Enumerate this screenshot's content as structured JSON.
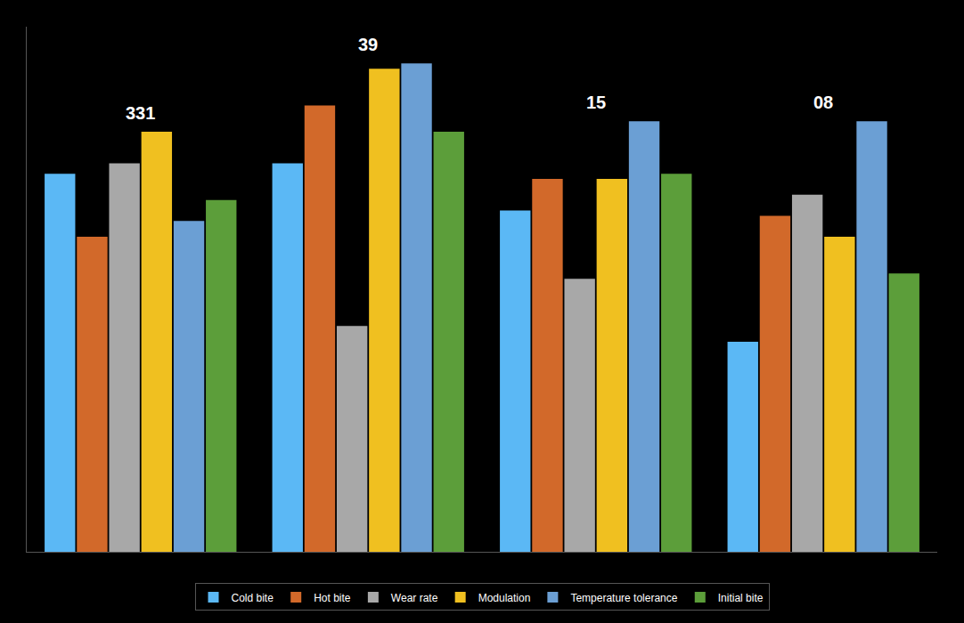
{
  "chart_data": {
    "type": "bar",
    "categories": [
      "331",
      "39",
      "15",
      "08"
    ],
    "series": [
      {
        "name": "Cold bite",
        "color": "#5BB8F5",
        "values": [
          72,
          74,
          65,
          40
        ]
      },
      {
        "name": "Hot bite",
        "color": "#D2692A",
        "values": [
          60,
          85,
          71,
          64
        ]
      },
      {
        "name": "Wear rate",
        "color": "#A8A8A8",
        "values": [
          74,
          43,
          52,
          68
        ]
      },
      {
        "name": "Modulation",
        "color": "#F0C020",
        "values": [
          80,
          92,
          71,
          60
        ]
      },
      {
        "name": "Temperature tolerance",
        "color": "#6B9FD4",
        "values": [
          63,
          93,
          82,
          82
        ]
      },
      {
        "name": "Initial bite",
        "color": "#5C9E3A",
        "values": [
          67,
          80,
          72,
          53
        ]
      }
    ],
    "ylim": [
      0,
      100
    ],
    "grid": false,
    "legend": "bottom",
    "tick_labels": false
  }
}
